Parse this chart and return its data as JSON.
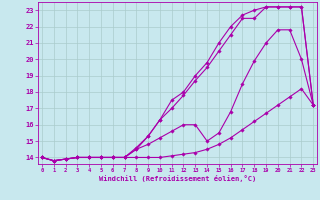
{
  "xlabel": "Windchill (Refroidissement éolien,°C)",
  "bg_color": "#c8e8ee",
  "line_color": "#aa00aa",
  "grid_color": "#aacccc",
  "xlim": [
    -0.3,
    23.3
  ],
  "ylim": [
    13.6,
    23.5
  ],
  "xticks": [
    0,
    1,
    2,
    3,
    4,
    5,
    6,
    7,
    8,
    9,
    10,
    11,
    12,
    13,
    14,
    15,
    16,
    17,
    18,
    19,
    20,
    21,
    22,
    23
  ],
  "yticks": [
    14,
    15,
    16,
    17,
    18,
    19,
    20,
    21,
    22,
    23
  ],
  "curve1_x": [
    0,
    1,
    2,
    3,
    4,
    5,
    6,
    7,
    8,
    9,
    10,
    11,
    12,
    13,
    14,
    15,
    16,
    17,
    18,
    19,
    20,
    21,
    22,
    23
  ],
  "curve1_y": [
    14.0,
    13.8,
    13.9,
    14.0,
    14.0,
    14.0,
    14.0,
    14.0,
    14.0,
    14.0,
    14.0,
    14.1,
    14.2,
    14.3,
    14.5,
    14.8,
    15.2,
    15.7,
    16.2,
    16.7,
    17.2,
    17.7,
    18.2,
    17.2
  ],
  "curve2_x": [
    0,
    1,
    2,
    3,
    4,
    5,
    6,
    7,
    8,
    9,
    10,
    11,
    12,
    13,
    14,
    15,
    16,
    17,
    18,
    19,
    20,
    21,
    22,
    23
  ],
  "curve2_y": [
    14.0,
    13.8,
    13.9,
    14.0,
    14.0,
    14.0,
    14.0,
    14.0,
    14.5,
    14.8,
    15.2,
    15.6,
    16.0,
    16.0,
    15.0,
    15.5,
    16.8,
    18.5,
    19.9,
    21.0,
    21.8,
    21.8,
    20.0,
    17.2
  ],
  "curve3_x": [
    0,
    1,
    2,
    3,
    4,
    5,
    6,
    7,
    8,
    9,
    10,
    11,
    12,
    13,
    14,
    15,
    16,
    17,
    18,
    19,
    20,
    21,
    22,
    23
  ],
  "curve3_y": [
    14.0,
    13.8,
    13.9,
    14.0,
    14.0,
    14.0,
    14.0,
    14.0,
    14.5,
    15.3,
    16.3,
    17.5,
    18.0,
    19.0,
    19.8,
    21.0,
    22.0,
    22.7,
    23.0,
    23.2,
    23.2,
    23.2,
    23.2,
    17.2
  ],
  "curve4_x": [
    0,
    1,
    2,
    3,
    4,
    5,
    6,
    7,
    8,
    9,
    10,
    11,
    12,
    13,
    14,
    15,
    16,
    17,
    18,
    19,
    20,
    21,
    22,
    23
  ],
  "curve4_y": [
    14.0,
    13.8,
    13.9,
    14.0,
    14.0,
    14.0,
    14.0,
    14.0,
    14.6,
    15.3,
    16.3,
    17.0,
    17.8,
    18.7,
    19.5,
    20.5,
    21.5,
    22.5,
    22.5,
    23.2,
    23.2,
    23.2,
    23.2,
    17.2
  ]
}
